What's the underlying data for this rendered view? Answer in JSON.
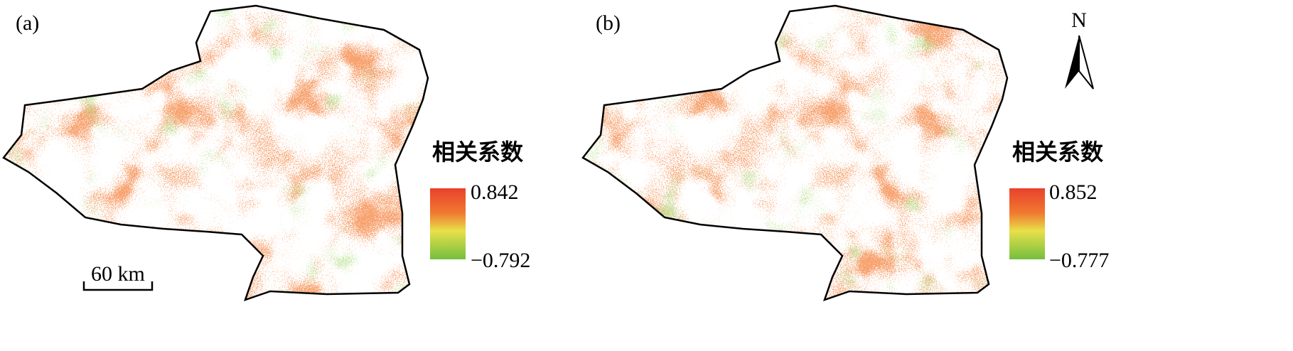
{
  "panels": [
    {
      "label": "(a)",
      "legend": {
        "title": "相关系数",
        "max": "0.842",
        "min": "−0.792"
      }
    },
    {
      "label": "(b)",
      "legend": {
        "title": "相关系数",
        "max": "0.852",
        "min": "−0.777"
      }
    }
  ],
  "scale_bar": "60 km",
  "north_arrow": "N"
}
